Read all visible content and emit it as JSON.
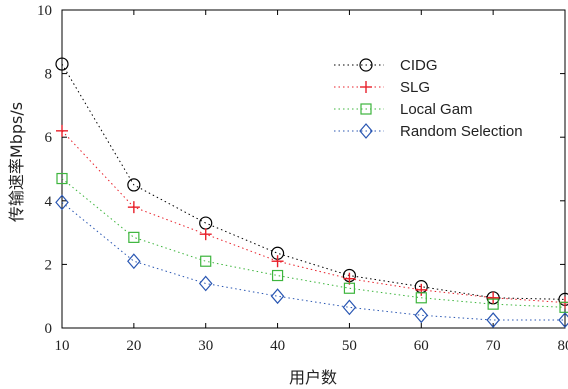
{
  "chart_data": {
    "type": "line",
    "x": [
      10,
      20,
      30,
      40,
      50,
      60,
      70,
      80
    ],
    "xlabel": "用户数",
    "ylabel": "传输速率Mbps/s",
    "xlim": [
      10,
      80
    ],
    "ylim": [
      0,
      10
    ],
    "xticks": [
      "10",
      "20",
      "30",
      "40",
      "50",
      "60",
      "70",
      "80"
    ],
    "yticks": [
      "0",
      "2",
      "4",
      "6",
      "8",
      "10"
    ],
    "grid": false,
    "legend_position": "top-right",
    "series": [
      {
        "name": "CIDG",
        "values": [
          8.3,
          4.5,
          3.3,
          2.35,
          1.65,
          1.3,
          0.95,
          0.9
        ],
        "color": "#000000",
        "marker": "circle"
      },
      {
        "name": "SLG",
        "values": [
          6.2,
          3.8,
          2.95,
          2.1,
          1.55,
          1.2,
          0.95,
          0.8
        ],
        "color": "#e8202a",
        "marker": "plus"
      },
      {
        "name": "Local Gam",
        "values": [
          4.7,
          2.85,
          2.1,
          1.65,
          1.25,
          0.95,
          0.75,
          0.65
        ],
        "color": "#3db53d",
        "marker": "square"
      },
      {
        "name": "Random Selection",
        "values": [
          3.95,
          2.1,
          1.4,
          1.0,
          0.65,
          0.4,
          0.25,
          0.25
        ],
        "color": "#2956b2",
        "marker": "diamond"
      }
    ]
  }
}
